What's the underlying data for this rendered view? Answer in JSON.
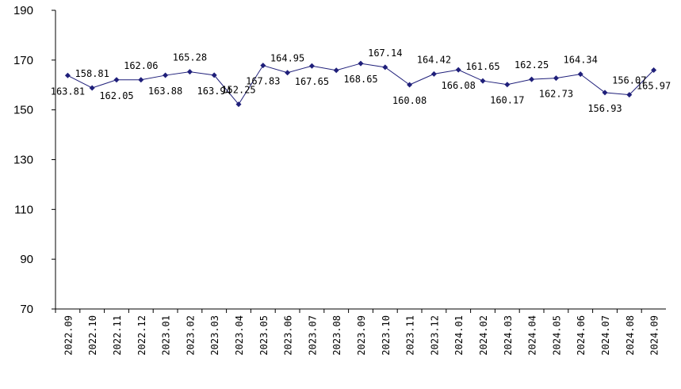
{
  "chart_data": {
    "type": "line",
    "categories": [
      "2022.09",
      "2022.10",
      "2022.11",
      "2022.12",
      "2023.01",
      "2023.02",
      "2023.03",
      "2023.04",
      "2023.05",
      "2023.06",
      "2023.07",
      "2023.08",
      "2023.09",
      "2023.10",
      "2023.11",
      "2023.12",
      "2024.01",
      "2024.02",
      "2024.03",
      "2024.04",
      "2024.05",
      "2024.06",
      "2024.07",
      "2024.08",
      "2024.09"
    ],
    "series": [
      {
        "color": "#1f1f7a",
        "values": [
          163.81,
          158.81,
          162.05,
          162.06,
          163.88,
          165.28,
          163.94,
          152.25,
          167.83,
          164.95,
          167.65,
          165.9,
          168.65,
          167.14,
          160.08,
          164.42,
          166.08,
          161.65,
          160.17,
          162.25,
          162.73,
          164.34,
          156.93,
          156.07,
          165.97
        ],
        "value_labels": [
          "163.81",
          "158.81",
          "162.05",
          "162.06",
          "163.88",
          "165.28",
          "163.94",
          "152.25",
          "167.83",
          "164.95",
          "167.65",
          null,
          "168.65",
          "167.14",
          "160.08",
          "164.42",
          "166.08",
          "161.65",
          "160.17",
          "162.25",
          "162.73",
          "164.34",
          "156.93",
          "156.07",
          "165.97"
        ]
      }
    ],
    "ylim": [
      70,
      190
    ],
    "yticks": [
      70,
      90,
      110,
      130,
      150,
      170,
      190
    ]
  }
}
